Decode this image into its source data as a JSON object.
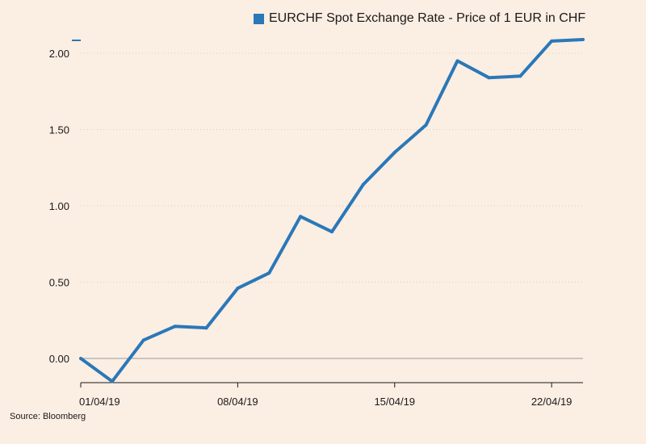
{
  "chart_data": {
    "type": "line",
    "title": "",
    "xlabel": "",
    "ylabel": "",
    "legend": {
      "placement": "top-right",
      "entries": [
        "EURCHF Spot Exchange Rate - Price of 1 EUR in CHF"
      ]
    },
    "series": [
      {
        "name": "EURCHF Spot Exchange Rate - Price of 1 EUR in CHF",
        "color": "#2a78b8",
        "x": [
          "01/04/19",
          "02/04/19",
          "03/04/19",
          "04/04/19",
          "05/04/19",
          "08/04/19",
          "09/04/19",
          "10/04/19",
          "11/04/19",
          "12/04/19",
          "15/04/19",
          "16/04/19",
          "17/04/19",
          "18/04/19",
          "19/04/19",
          "22/04/19",
          "23/04/19"
        ],
        "values": [
          0.0,
          -0.15,
          0.12,
          0.21,
          0.2,
          0.46,
          0.56,
          0.93,
          0.83,
          1.14,
          1.35,
          1.53,
          1.95,
          1.84,
          1.85,
          2.08,
          2.09
        ]
      }
    ],
    "yticks": [
      "0.00",
      "0.50",
      "1.00",
      "1.50",
      "2.00"
    ],
    "ytick_values": [
      0,
      0.5,
      1.0,
      1.5,
      2.0
    ],
    "ylim": [
      -0.16,
      2.4
    ],
    "xticks": [
      {
        "label": "01/04/19",
        "x": "01/04/19"
      },
      {
        "label": "08/04/19",
        "x": "08/04/19"
      },
      {
        "label": "15/04/19",
        "x": "15/04/19"
      },
      {
        "label": "22/04/19",
        "x": "22/04/19"
      }
    ],
    "grid": true
  },
  "source": "Source: Bloomberg"
}
